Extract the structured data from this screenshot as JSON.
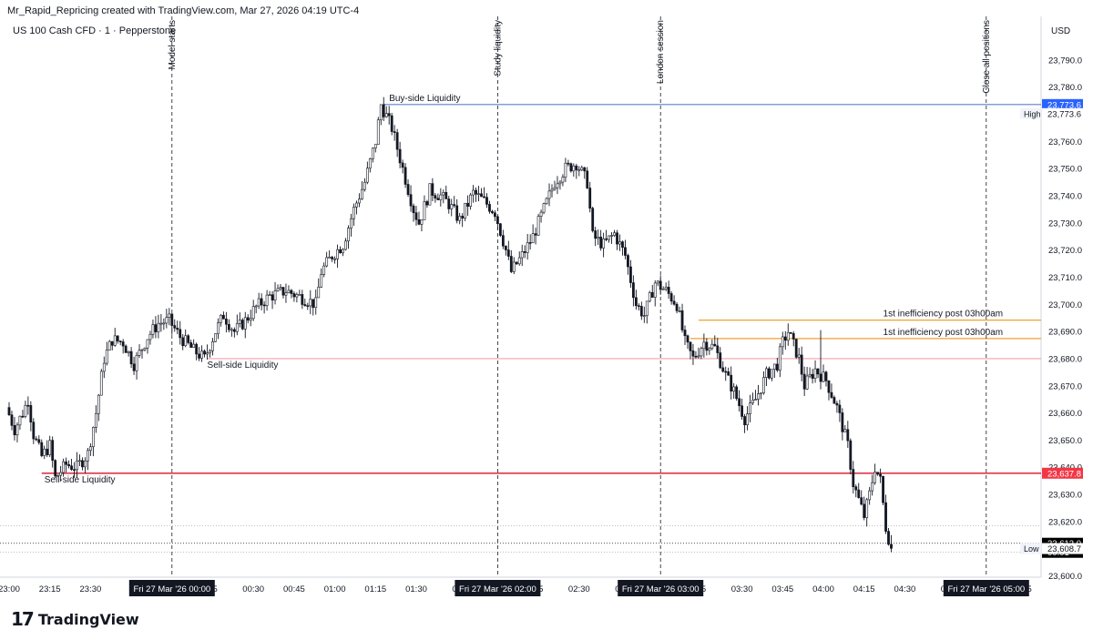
{
  "header": {
    "credit": "Mr_Rapid_Repricing created with TradingView.com, Mar 27, 2026 04:19 UTC-4",
    "symbol": "US 100 Cash CFD · 1 · Pepperstone"
  },
  "branding": {
    "logo_mark": "17",
    "logo_text": "TradingView"
  },
  "colors": {
    "candle": "#131722",
    "blue_line": "#5b82c8",
    "red_line": "#e0364a",
    "pink_line": "#f0a0ad",
    "orange_line": "#f0a030",
    "grid_dotted": "#9598a1",
    "current_price_bg": "#000000",
    "high_badge_bg": "#2962ff",
    "red_badge_bg": "#f23645"
  },
  "chart_data": {
    "type": "candlestick",
    "currency": "USD",
    "y_ticks": [
      "23,790.0",
      "23,780.0",
      "23,770.0",
      "23,760.0",
      "23,750.0",
      "23,740.0",
      "23,730.0",
      "23,720.0",
      "23,710.0",
      "23,700.0",
      "23,690.0",
      "23,680.0",
      "23,670.0",
      "23,660.0",
      "23,650.0",
      "23,640.0",
      "23,630.0",
      "23,620.0",
      "23,610.0",
      "23,600.0"
    ],
    "y_range": [
      23598,
      23800
    ],
    "x_range_minutes": [
      -60,
      250
    ],
    "x_ticks": [
      {
        "t": 0,
        "label": "23:00"
      },
      {
        "t": 15,
        "label": "23:15"
      },
      {
        "t": 30,
        "label": "23:30"
      },
      {
        "t": 75,
        "label": "15"
      },
      {
        "t": 90,
        "label": "00:30"
      },
      {
        "t": 105,
        "label": "00:45"
      },
      {
        "t": 120,
        "label": "01:00"
      },
      {
        "t": 135,
        "label": "01:15"
      },
      {
        "t": 150,
        "label": "01:30"
      },
      {
        "t": 165,
        "label": "01"
      },
      {
        "t": 195,
        "label": "15"
      },
      {
        "t": 210,
        "label": "02:30"
      },
      {
        "t": 225,
        "label": "02"
      },
      {
        "t": 255,
        "label": "15"
      },
      {
        "t": 270,
        "label": "03:30"
      },
      {
        "t": 285,
        "label": "03:45"
      },
      {
        "t": 300,
        "label": "04:00"
      },
      {
        "t": 315,
        "label": "04:15"
      },
      {
        "t": 330,
        "label": "04:30"
      },
      {
        "t": 345,
        "label": "04"
      },
      {
        "t": 375,
        "label": "15"
      }
    ],
    "x_highlight_ticks": [
      {
        "t": 60,
        "label": "Fri 27 Mar '26   00:00"
      },
      {
        "t": 180,
        "label": "Fri 27 Mar '26   02:00"
      },
      {
        "t": 240,
        "label": "Fri 27 Mar '26   03:00"
      },
      {
        "t": 360,
        "label": "Fri 27 Mar '26   05:00"
      }
    ],
    "vertical_events": [
      {
        "t": 60,
        "label": "Model starts"
      },
      {
        "t": 180,
        "label": "Study liquidity"
      },
      {
        "t": 240,
        "label": "London session"
      },
      {
        "t": 360,
        "label": "Close all positions"
      }
    ],
    "levels": [
      {
        "price": 23773.6,
        "t_start": 138,
        "label": "Buy-side Liquidity",
        "label_t": 140,
        "color": "blue_line"
      },
      {
        "price": 23680.0,
        "t_start": 73,
        "label": "Sell-side Liquidity",
        "label_t": 73,
        "color": "pink_line"
      },
      {
        "price": 23637.8,
        "t_start": 12,
        "label": "Sell-side Liquidity",
        "label_t": 13,
        "color": "red_line"
      },
      {
        "price": 23694.2,
        "t_start": 254,
        "label": "1st inefficiency post 03h00am",
        "label_t": 322,
        "color": "orange_line"
      },
      {
        "price": 23687.4,
        "t_start": 251,
        "label": "1st inefficiency post 03h00am",
        "label_t": 322,
        "color": "orange_line"
      }
    ],
    "dotted_levels": [
      23618.5,
      23608.7
    ],
    "price_badges": [
      {
        "price": 23773.6,
        "label": "23,773.6",
        "style": "blue"
      },
      {
        "price": 23773.6,
        "label": "23,773.6",
        "style": "plain",
        "tag": "High",
        "offset": 10
      },
      {
        "price": 23637.8,
        "label": "23,637.8",
        "style": "red"
      },
      {
        "price": 23612.0,
        "label": "23,612.0",
        "sub": "00:01",
        "style": "black"
      },
      {
        "price": 23608.7,
        "label": "23,608.7",
        "style": "plain",
        "tag": "Low",
        "offset": -4
      }
    ],
    "keypoints": [
      [
        0,
        23662
      ],
      [
        3,
        23654
      ],
      [
        6,
        23660
      ],
      [
        8,
        23665
      ],
      [
        10,
        23652
      ],
      [
        13,
        23644
      ],
      [
        16,
        23648
      ],
      [
        18,
        23636
      ],
      [
        22,
        23641
      ],
      [
        26,
        23640
      ],
      [
        30,
        23645
      ],
      [
        33,
        23660
      ],
      [
        36,
        23680
      ],
      [
        39,
        23687
      ],
      [
        43,
        23686
      ],
      [
        47,
        23678
      ],
      [
        52,
        23688
      ],
      [
        56,
        23693
      ],
      [
        60,
        23694
      ],
      [
        64,
        23688
      ],
      [
        69,
        23683
      ],
      [
        73,
        23680
      ],
      [
        77,
        23690
      ],
      [
        80,
        23696
      ],
      [
        84,
        23690
      ],
      [
        88,
        23694
      ],
      [
        92,
        23699
      ],
      [
        97,
        23703
      ],
      [
        103,
        23705
      ],
      [
        110,
        23702
      ],
      [
        114,
        23700
      ],
      [
        116,
        23712
      ],
      [
        120,
        23718
      ],
      [
        124,
        23722
      ],
      [
        128,
        23735
      ],
      [
        132,
        23745
      ],
      [
        136,
        23760
      ],
      [
        138,
        23773.6
      ],
      [
        142,
        23765
      ],
      [
        146,
        23750
      ],
      [
        150,
        23735
      ],
      [
        152,
        23730
      ],
      [
        156,
        23742
      ],
      [
        160,
        23740
      ],
      [
        163,
        23737
      ],
      [
        167,
        23731
      ],
      [
        172,
        23741
      ],
      [
        176,
        23738
      ],
      [
        180,
        23734
      ],
      [
        184,
        23720
      ],
      [
        186,
        23712
      ],
      [
        190,
        23718
      ],
      [
        194,
        23725
      ],
      [
        198,
        23735
      ],
      [
        202,
        23745
      ],
      [
        206,
        23750
      ],
      [
        210,
        23752
      ],
      [
        214,
        23745
      ],
      [
        216,
        23725
      ],
      [
        220,
        23722
      ],
      [
        224,
        23726
      ],
      [
        228,
        23718
      ],
      [
        232,
        23700
      ],
      [
        235,
        23696
      ],
      [
        239,
        23708
      ],
      [
        243,
        23705
      ],
      [
        247,
        23700
      ],
      [
        250,
        23686
      ],
      [
        253,
        23680
      ],
      [
        257,
        23686
      ],
      [
        261,
        23684
      ],
      [
        265,
        23674
      ],
      [
        268,
        23668
      ],
      [
        272,
        23658
      ],
      [
        276,
        23665
      ],
      [
        280,
        23674
      ],
      [
        284,
        23678
      ],
      [
        286,
        23686
      ],
      [
        288,
        23690
      ],
      [
        292,
        23680
      ],
      [
        294,
        23670
      ],
      [
        298,
        23676
      ],
      [
        302,
        23672
      ],
      [
        306,
        23662
      ],
      [
        310,
        23648
      ],
      [
        312,
        23634
      ],
      [
        314,
        23628
      ],
      [
        316,
        23622
      ],
      [
        318,
        23630
      ],
      [
        320,
        23640
      ],
      [
        322,
        23635
      ],
      [
        324,
        23618
      ],
      [
        326,
        23610
      ]
    ]
  }
}
